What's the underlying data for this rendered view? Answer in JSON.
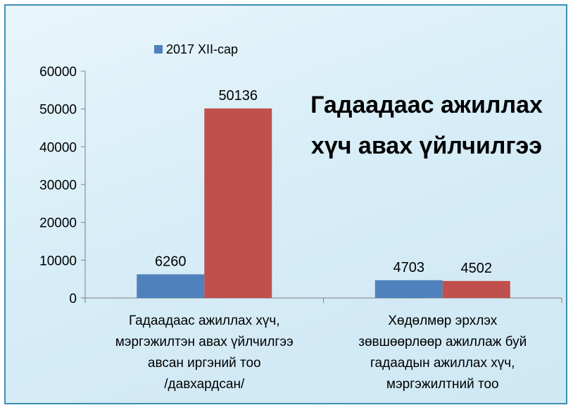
{
  "chart_data": {
    "type": "bar",
    "title_lines": [
      "Гадаадаас ажиллах",
      "хүч авах үйлчилгээ"
    ],
    "categories": [
      [
        "Гадаадаас ажиллах хүч,",
        "мэргэжилтэн авах үйлчилгээ",
        "авсан иргэний тоо",
        "/давхардсан/"
      ],
      [
        "Хөдөлмөр эрхлэх",
        "зөвшөөрлөөр ажиллаж буй",
        "гадаадын ажиллах хүч,",
        "мэргэжилтний тоо"
      ]
    ],
    "series": [
      {
        "name": "2017 XII-сар",
        "color": "#4f81bd",
        "values": [
          6260,
          4703
        ]
      },
      {
        "color": "#c0504d",
        "values": [
          50136,
          4502
        ]
      }
    ],
    "ylim": [
      0,
      60000
    ],
    "yticks": [
      0,
      10000,
      20000,
      30000,
      40000,
      50000,
      60000
    ],
    "legend_position": "top",
    "grid": false
  }
}
